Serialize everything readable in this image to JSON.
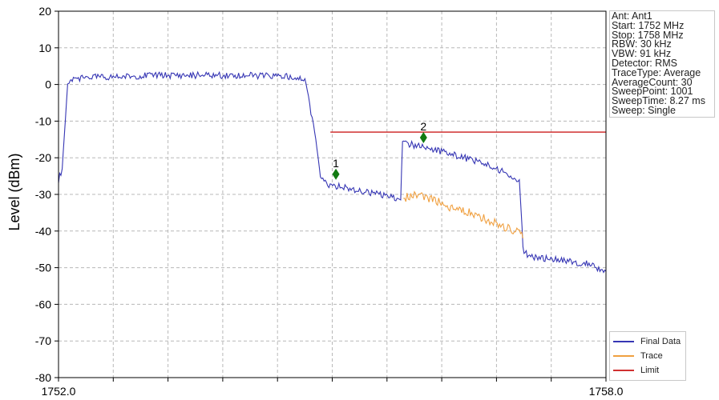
{
  "chart_data": {
    "type": "line",
    "ylabel": "Level (dBm)",
    "xlim": [
      1752.0,
      1758.0
    ],
    "ylim": [
      -80,
      20
    ],
    "yticks": [
      20,
      10,
      0,
      -10,
      -20,
      -30,
      -40,
      -50,
      -60,
      -70,
      -80
    ],
    "xtick_labels": [
      "1752.0",
      "1758.0"
    ],
    "x_minor_divisions": 10,
    "grid": true,
    "series": [
      {
        "name": "Final Data",
        "color": "#3636b4",
        "x": [
          1752.0,
          1752.04,
          1752.1,
          1752.13,
          1752.15,
          1752.3,
          1752.6,
          1753.0,
          1753.5,
          1754.0,
          1754.5,
          1754.7,
          1754.82,
          1754.87,
          1754.95,
          1755.1,
          1755.3,
          1755.5,
          1755.75,
          1755.77,
          1755.78,
          1756.0,
          1756.3,
          1756.6,
          1756.9,
          1757.05,
          1757.08,
          1757.09,
          1757.15,
          1757.5,
          1757.8,
          1758.0
        ],
        "y": [
          -26,
          -23,
          0,
          1.8,
          1.5,
          2,
          2,
          2.5,
          2.5,
          2.5,
          2.2,
          1.5,
          -15,
          -25,
          -27.5,
          -28,
          -29,
          -30,
          -31.5,
          -15,
          -16,
          -17,
          -19,
          -21,
          -24,
          -26,
          -39,
          -45,
          -47,
          -48,
          -49,
          -51
        ]
      },
      {
        "name": "Trace",
        "color": "#f0a040",
        "x": [
          1755.78,
          1755.9,
          1756.1,
          1756.3,
          1756.5,
          1756.7,
          1756.9,
          1757.05,
          1757.09
        ],
        "y": [
          -31,
          -30,
          -31.5,
          -33.5,
          -35,
          -37,
          -39,
          -40.5,
          -42
        ]
      },
      {
        "name": "Limit",
        "color": "#d03030",
        "x": [
          1754.98,
          1758.0
        ],
        "y": [
          -13,
          -13
        ]
      }
    ],
    "markers": [
      {
        "label": "1",
        "x": 1755.04,
        "y": -24.5,
        "color": "#117a11"
      },
      {
        "label": "2",
        "x": 1756.0,
        "y": -14.5,
        "color": "#117a11"
      }
    ]
  },
  "info_lines": [
    "Ant: Ant1",
    "Start: 1752 MHz",
    "Stop: 1758 MHz",
    "RBW: 30 kHz",
    "VBW: 91 kHz",
    "Detector: RMS",
    "TraceType: Average",
    "AverageCount: 30",
    "SweepPoint: 1001",
    "SweepTime: 8.27 ms",
    "Sweep: Single"
  ],
  "legend": [
    "Final Data",
    "Trace",
    "Limit"
  ]
}
